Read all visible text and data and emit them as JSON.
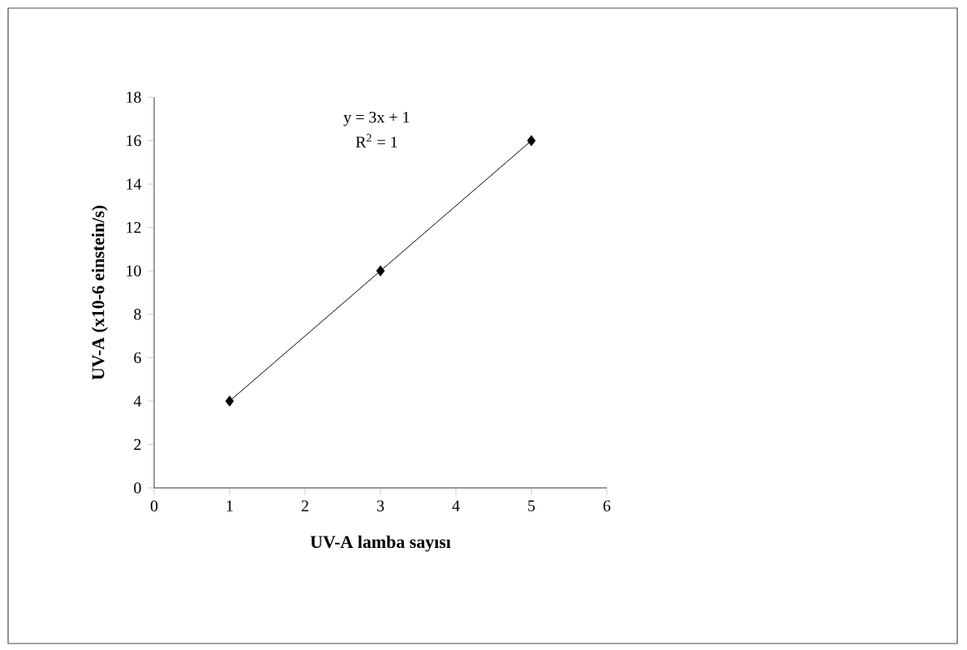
{
  "chart_data": {
    "type": "scatter",
    "xlabel": "UV-A lamba sayısı",
    "ylabel": "UV-A (x10-6 einstein/s)",
    "xlim": [
      0,
      6
    ],
    "xticks": [
      0,
      1,
      2,
      3,
      4,
      5,
      6
    ],
    "ylim": [
      0,
      18
    ],
    "yticks": [
      0,
      2,
      4,
      6,
      8,
      10,
      12,
      14,
      16,
      18
    ],
    "grid": false,
    "marker": "diamond",
    "annotations": [
      "y = 3x + 1",
      "R$^{2}$ = 1"
    ],
    "series": [
      {
        "color": "#000000",
        "x": [
          1,
          3,
          5
        ],
        "values": [
          4,
          10,
          16
        ]
      },
      {
        "type": "line",
        "color": "#000000",
        "marker": "none",
        "line_style": "solid",
        "x": [
          1,
          5
        ],
        "values": [
          4,
          16
        ]
      }
    ]
  }
}
